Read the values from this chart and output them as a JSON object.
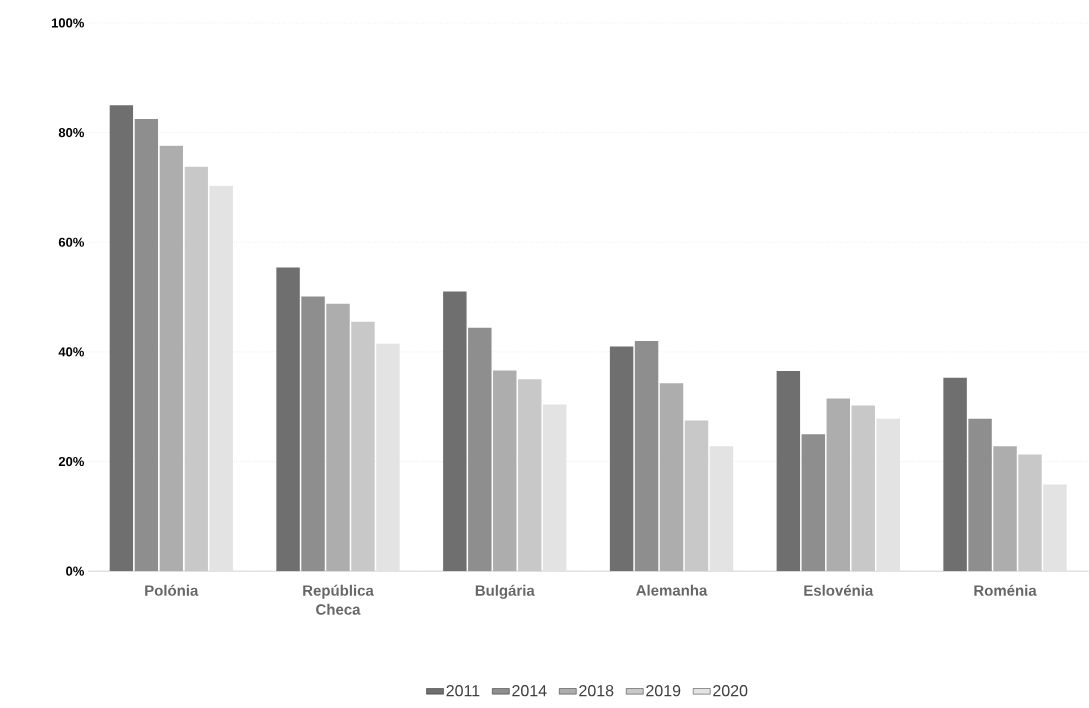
{
  "chart_data": {
    "type": "bar",
    "categories": [
      "Polónia",
      "República Checa",
      "Bulgária",
      "Alemanha",
      "Eslovénia",
      "Roménia"
    ],
    "series": [
      {
        "name": "2011",
        "color": "#6f6f6f",
        "values": [
          85,
          55.4,
          51,
          41,
          36.5,
          35.3
        ]
      },
      {
        "name": "2014",
        "color": "#8e8e8e",
        "values": [
          82.5,
          50.1,
          44.4,
          42,
          25,
          27.8
        ]
      },
      {
        "name": "2018",
        "color": "#adadad",
        "values": [
          77.6,
          48.8,
          36.6,
          34.3,
          31.5,
          22.8
        ]
      },
      {
        "name": "2019",
        "color": "#c8c8c8",
        "values": [
          73.8,
          45.5,
          35,
          27.5,
          30.2,
          21.3
        ]
      },
      {
        "name": "2020",
        "color": "#e3e3e3",
        "values": [
          70.3,
          41.5,
          30.4,
          22.8,
          27.8,
          15.8
        ]
      }
    ],
    "ylim": [
      0,
      100
    ],
    "yticks": [
      {
        "value": 0,
        "label": "0%"
      },
      {
        "value": 20,
        "label": "20%"
      },
      {
        "value": 40,
        "label": "40%"
      },
      {
        "value": 60,
        "label": "60%"
      },
      {
        "value": 80,
        "label": "80%"
      },
      {
        "value": 100,
        "label": "100%"
      }
    ],
    "grid": "y",
    "legend": "bottom"
  }
}
